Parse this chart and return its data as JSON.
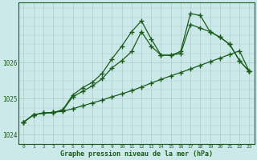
{
  "xlabel": "Graphe pression niveau de la mer (hPa)",
  "background_color": "#cce9e9",
  "line_color": "#1a5c1a",
  "grid_color": "#aacccc",
  "hours": [
    0,
    1,
    2,
    3,
    4,
    5,
    6,
    7,
    8,
    9,
    10,
    11,
    12,
    13,
    14,
    15,
    16,
    17,
    18,
    19,
    20,
    21,
    22,
    23
  ],
  "series1": [
    1024.35,
    1024.55,
    1024.6,
    1024.6,
    1024.7,
    1025.1,
    1025.3,
    1025.45,
    1025.7,
    1026.1,
    1026.45,
    1026.85,
    1027.15,
    1026.65,
    1026.2,
    1026.2,
    1026.3,
    1027.35,
    1027.3,
    1026.85,
    1026.7,
    1026.5,
    1026.05,
    1025.75
  ],
  "series2": [
    1024.35,
    1024.55,
    1024.6,
    1024.62,
    1024.65,
    1024.72,
    1024.8,
    1024.88,
    1024.96,
    1025.05,
    1025.13,
    1025.22,
    1025.32,
    1025.43,
    1025.53,
    1025.63,
    1025.72,
    1025.82,
    1025.92,
    1026.02,
    1026.12,
    1026.22,
    1026.32,
    1025.75
  ],
  "series3": [
    1024.35,
    1024.55,
    1024.6,
    1024.62,
    1024.68,
    1025.05,
    1025.2,
    1025.35,
    1025.55,
    1025.85,
    1026.05,
    1026.3,
    1026.85,
    1026.45,
    1026.2,
    1026.2,
    1026.25,
    1027.05,
    1026.95,
    1026.85,
    1026.7,
    1026.5,
    1026.05,
    1025.75
  ],
  "ylim": [
    1023.75,
    1027.65
  ],
  "yticks": [
    1024,
    1025,
    1026
  ],
  "xlim": [
    -0.5,
    23.5
  ]
}
